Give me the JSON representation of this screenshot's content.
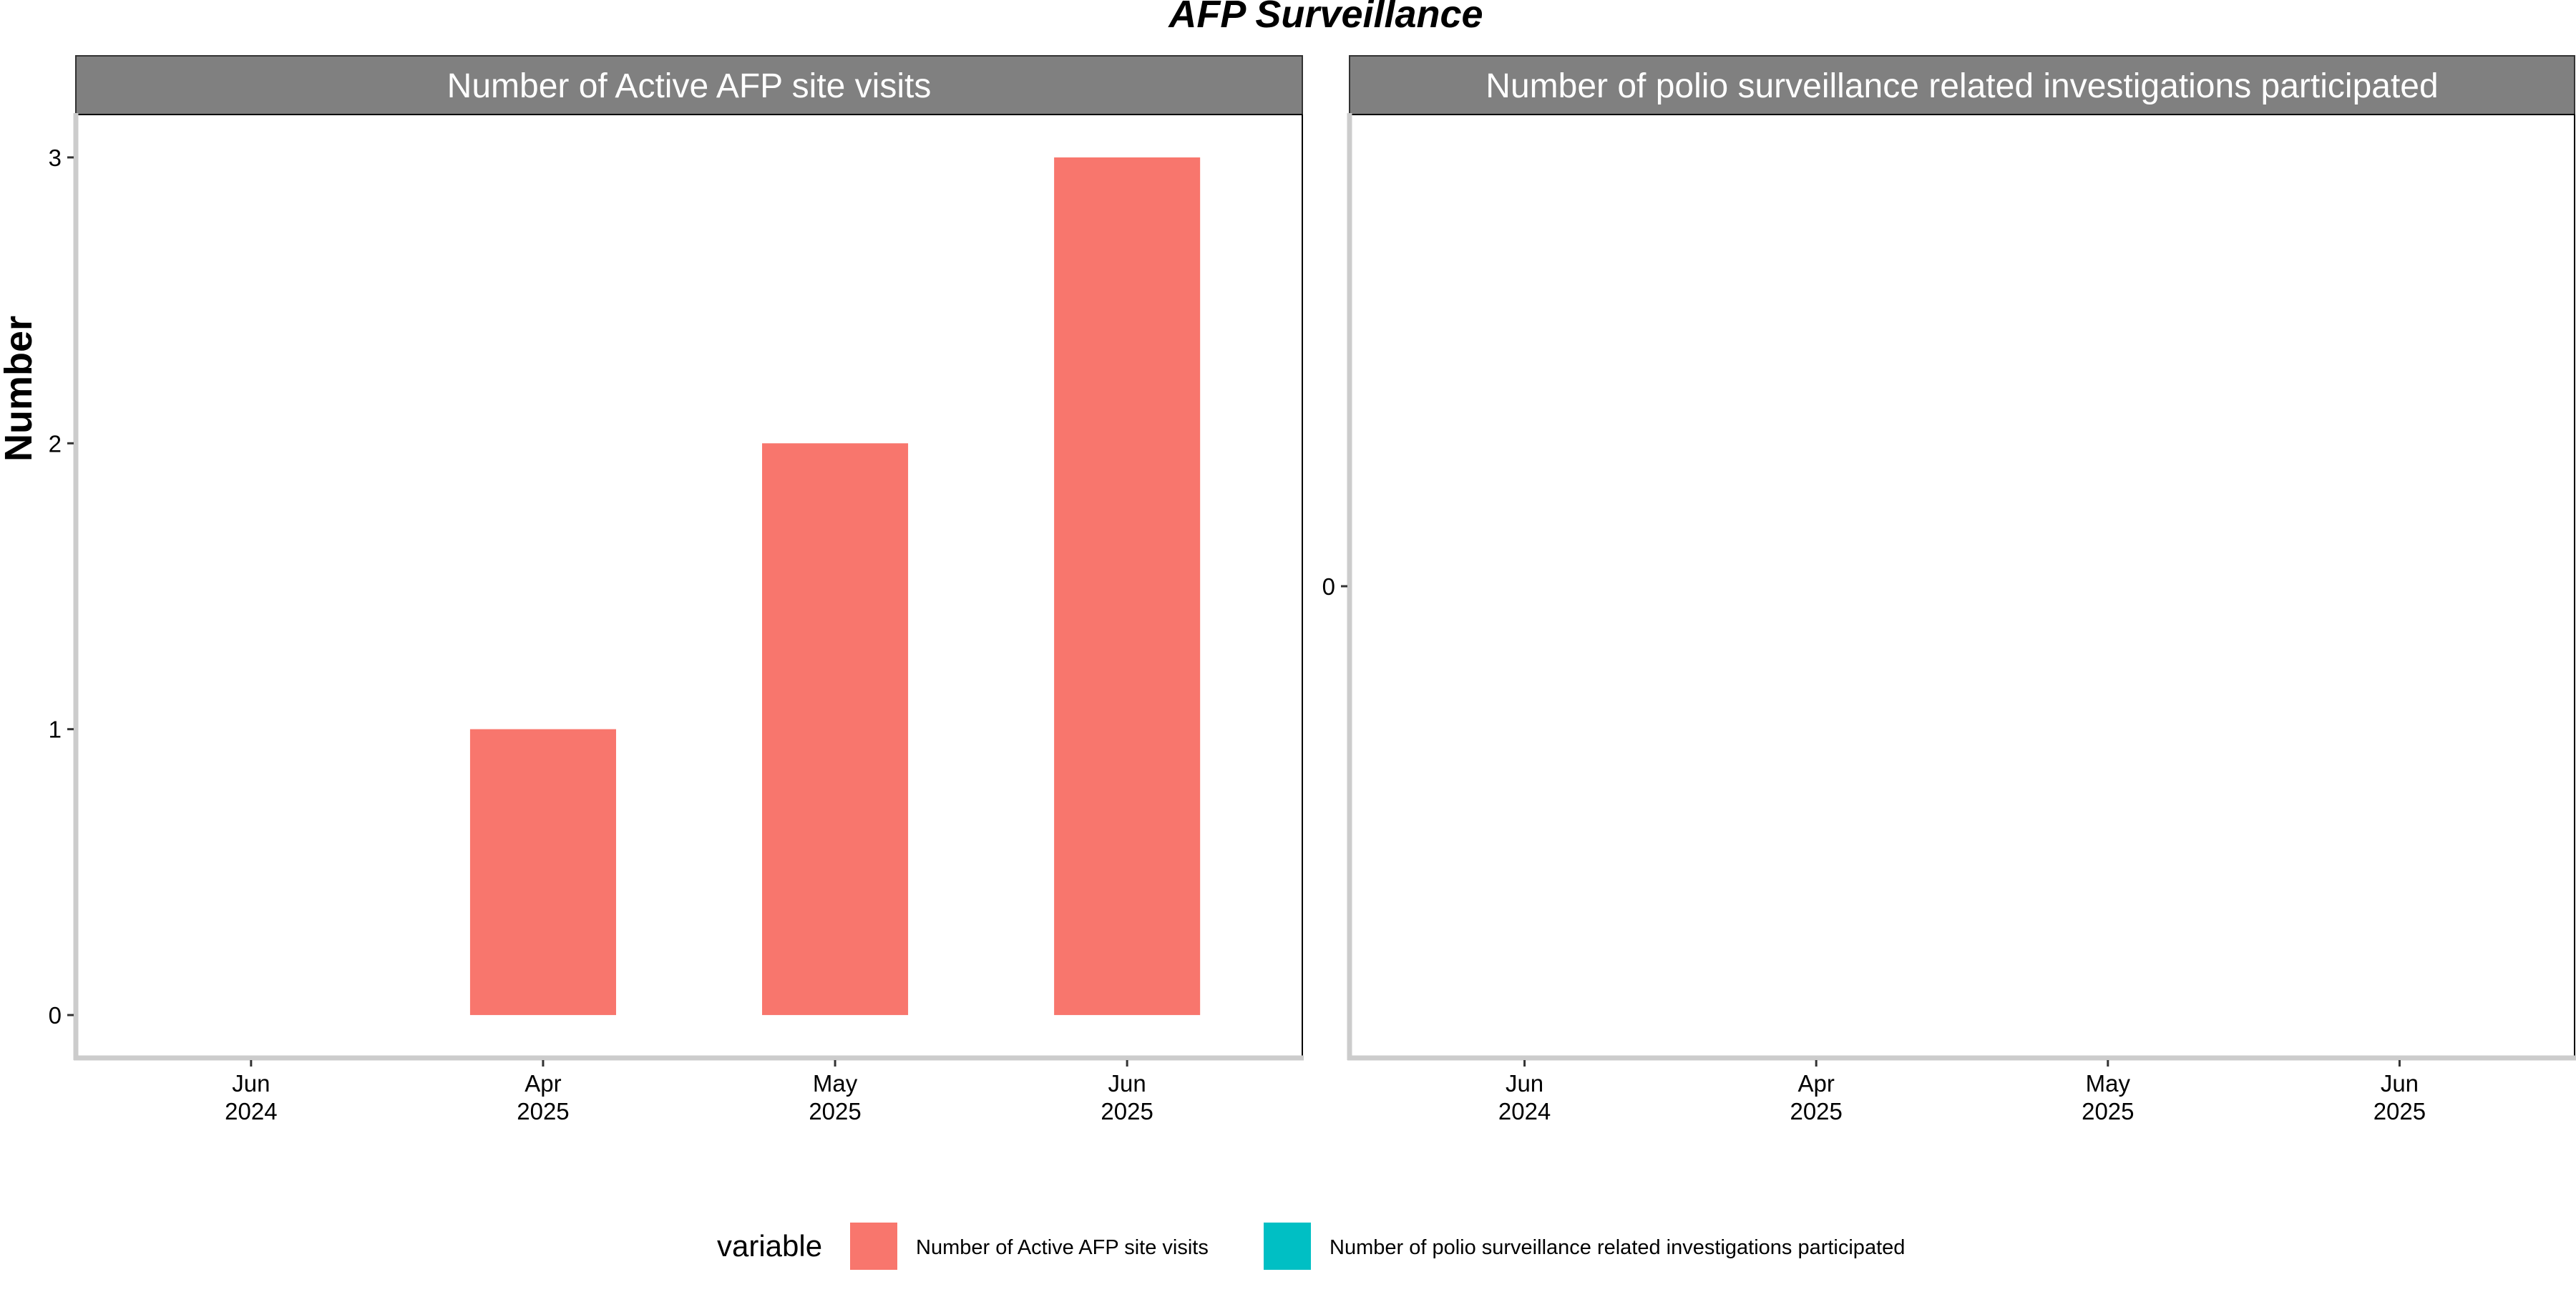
{
  "chart_title": "AFP Surveillance",
  "y_axis_label": "Number",
  "colors": {
    "strip_bg": "#808080",
    "strip_text": "#ffffff",
    "axis_line": "#cccccc",
    "panel_border": "#000000",
    "text": "#000000"
  },
  "chart_data": [
    {
      "type": "bar",
      "title": "Number of Active AFP site visits",
      "categories": [
        "Jun 2024",
        "Apr 2025",
        "May 2025",
        "Jun 2025"
      ],
      "tick_labels": [
        [
          "Jun",
          "2024"
        ],
        [
          "Apr",
          "2025"
        ],
        [
          "May",
          "2025"
        ],
        [
          "Jun",
          "2025"
        ]
      ],
      "series": [
        {
          "name": "Number of Active AFP site visits",
          "values": [
            null,
            1,
            2,
            3
          ],
          "color": "#F8766D"
        }
      ],
      "yticks": [
        0,
        1,
        2,
        3
      ],
      "ylim": [
        -0.15,
        3.15
      ],
      "grid": false
    },
    {
      "type": "bar",
      "title": "Number of polio surveillance related investigations participated",
      "categories": [
        "Jun 2024",
        "Apr 2025",
        "May 2025",
        "Jun 2025"
      ],
      "tick_labels": [
        [
          "Jun",
          "2024"
        ],
        [
          "Apr",
          "2025"
        ],
        [
          "May",
          "2025"
        ],
        [
          "Jun",
          "2025"
        ]
      ],
      "series": [
        {
          "name": "Number of polio surveillance related investigations participated",
          "values": [
            null,
            null,
            null,
            null
          ],
          "color": "#00BFC4"
        }
      ],
      "yticks": [
        0
      ],
      "ylim": [
        -0.05,
        0.05
      ],
      "grid": false
    }
  ],
  "legend": {
    "title": "variable",
    "position": "bottom",
    "items": [
      {
        "label": "Number of Active AFP site visits",
        "color": "#F8766D"
      },
      {
        "label": "Number of polio surveillance related investigations participated",
        "color": "#00BFC4"
      }
    ]
  }
}
